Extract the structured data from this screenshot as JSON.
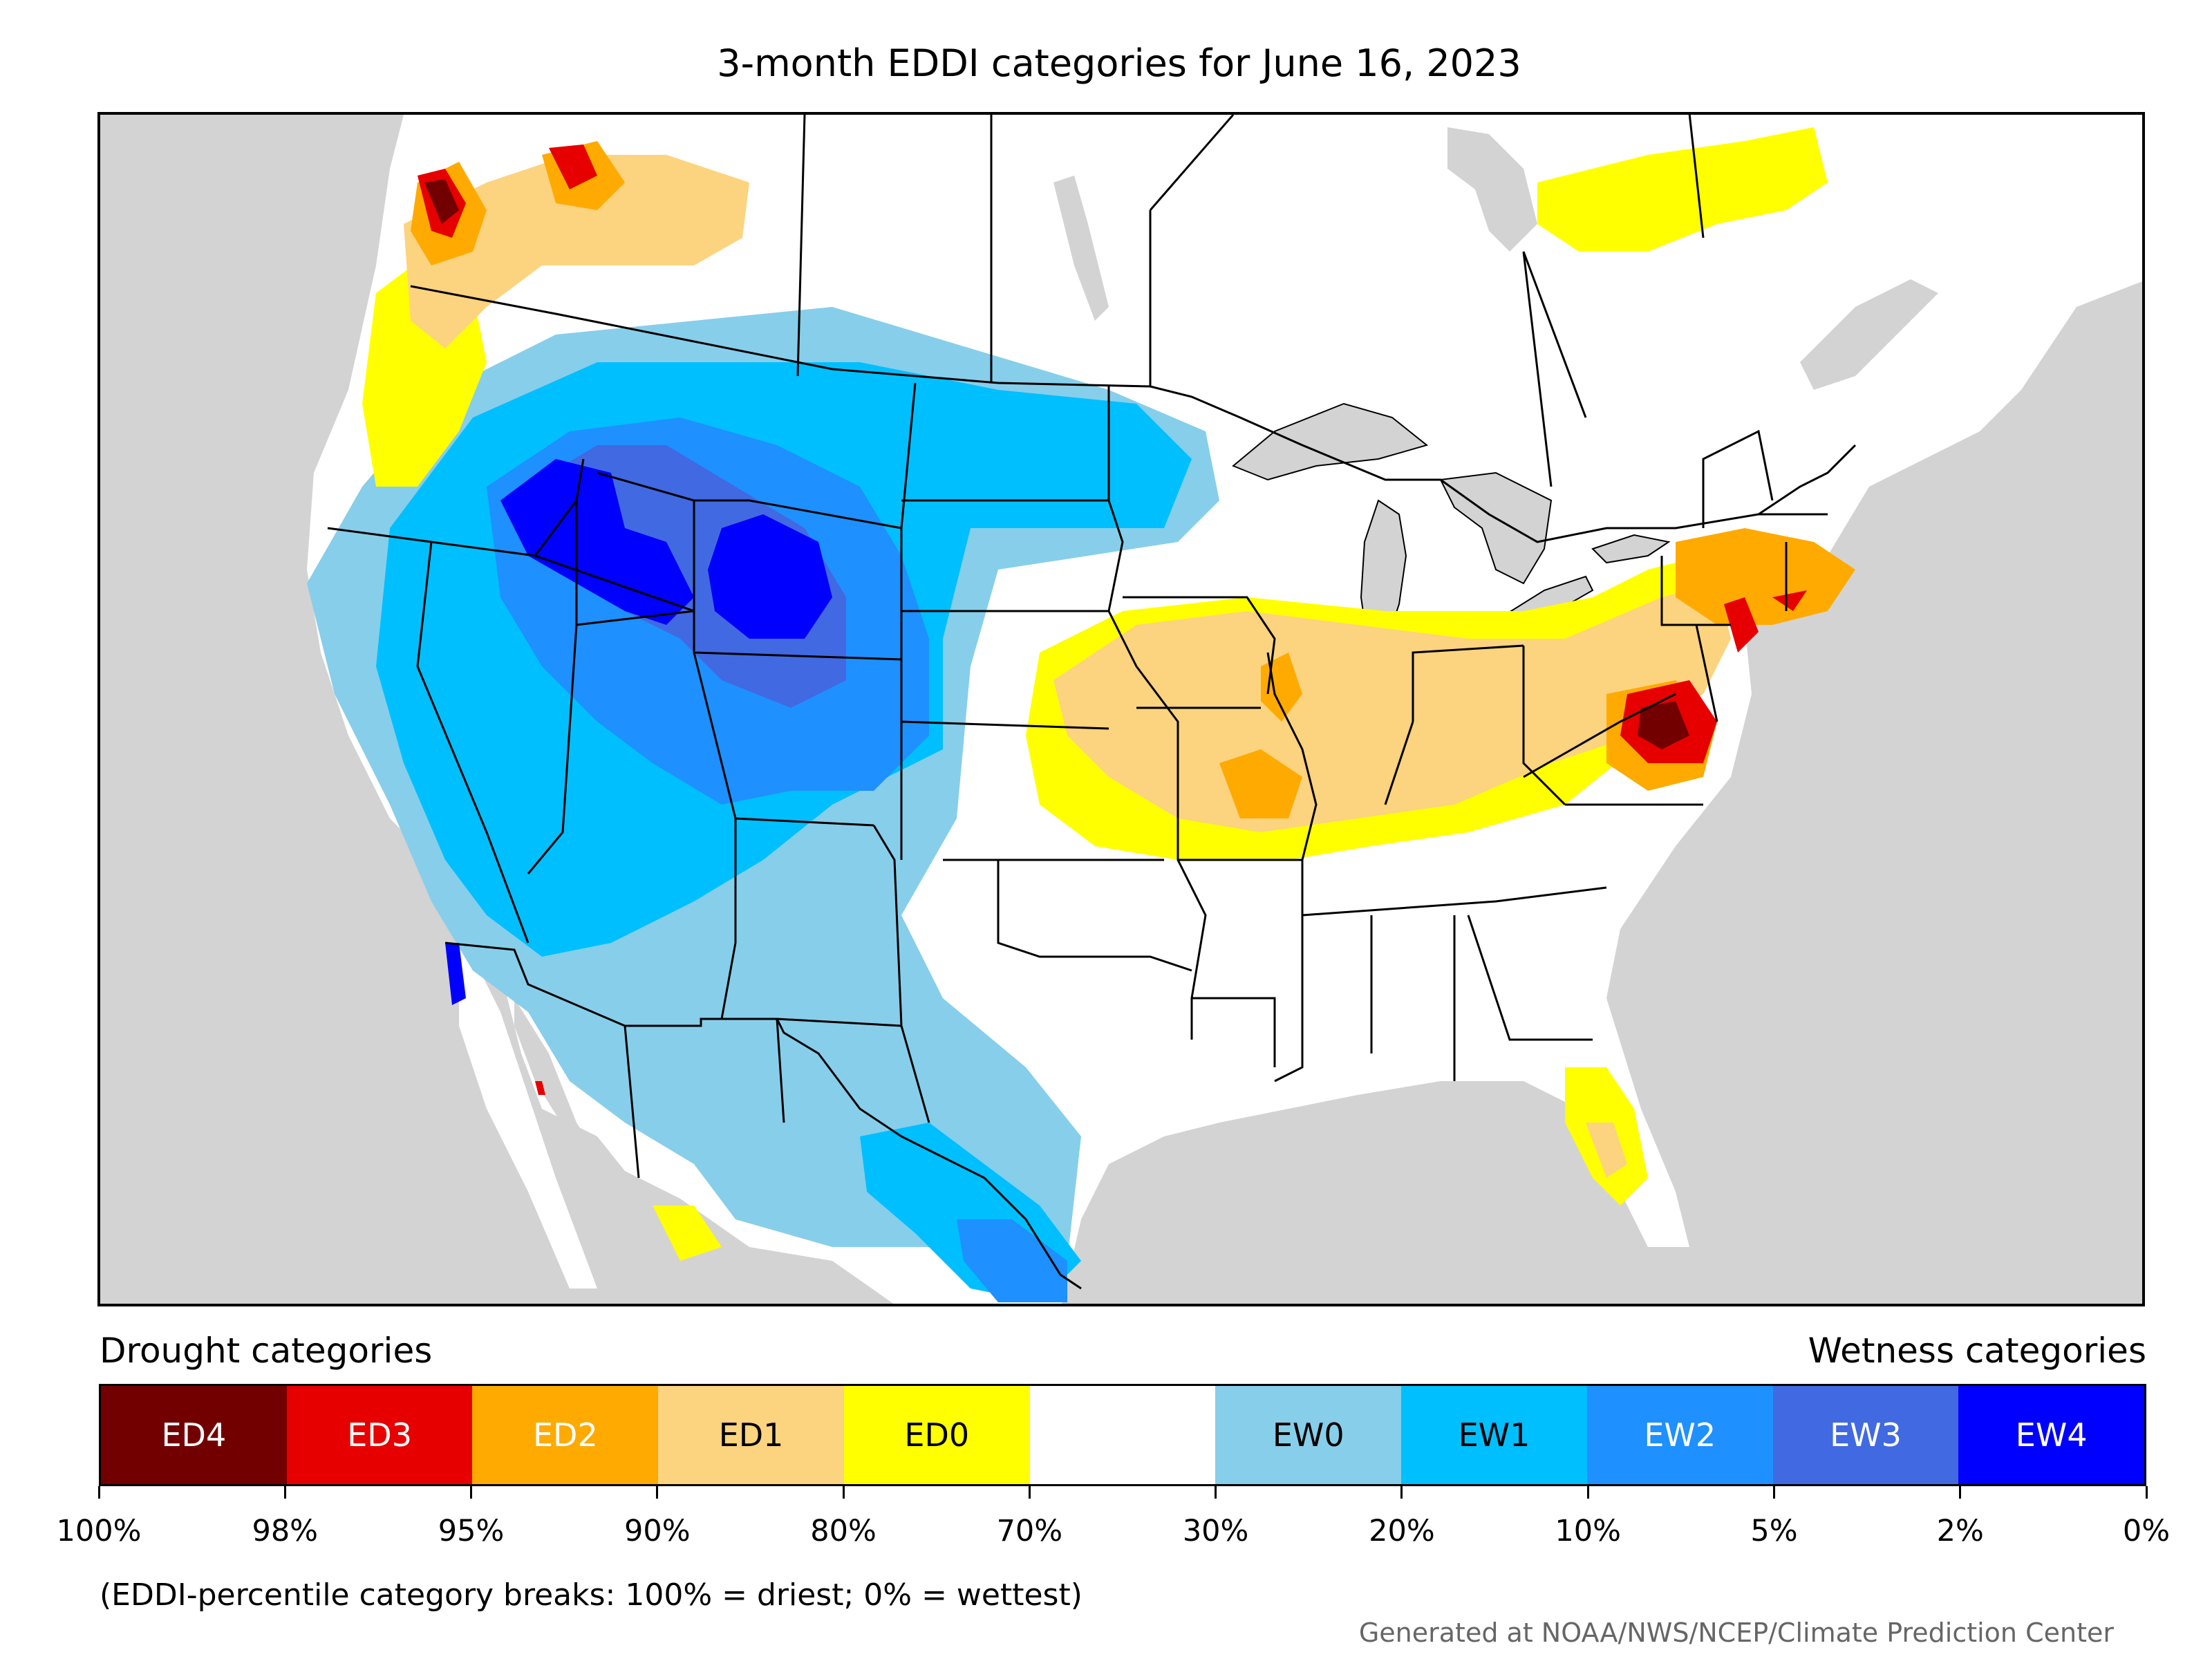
{
  "title": "3-month EDDI categories for June 16, 2023",
  "legend": {
    "drought_label": "Drought categories",
    "wetness_label": "Wetness categories",
    "categories": [
      {
        "label": "ED4",
        "color": "#730000",
        "text_color": "#ffffff"
      },
      {
        "label": "ED3",
        "color": "#e60000",
        "text_color": "#ffffff"
      },
      {
        "label": "ED2",
        "color": "#ffaa00",
        "text_color": "#ffffff"
      },
      {
        "label": "ED1",
        "color": "#fcd37f",
        "text_color": "#000000"
      },
      {
        "label": "ED0",
        "color": "#ffff00",
        "text_color": "#000000"
      },
      {
        "label": "",
        "color": "#ffffff",
        "text_color": "#000000"
      },
      {
        "label": "EW0",
        "color": "#87ceeb",
        "text_color": "#000000"
      },
      {
        "label": "EW1",
        "color": "#00bfff",
        "text_color": "#000000"
      },
      {
        "label": "EW2",
        "color": "#1e90ff",
        "text_color": "#ffffff"
      },
      {
        "label": "EW3",
        "color": "#4169e1",
        "text_color": "#ffffff"
      },
      {
        "label": "EW4",
        "color": "#0000ff",
        "text_color": "#ffffff"
      }
    ],
    "tick_labels": [
      "100%",
      "98%",
      "95%",
      "90%",
      "80%",
      "70%",
      "30%",
      "20%",
      "10%",
      "5%",
      "2%",
      "0%"
    ]
  },
  "note": "(EDDI-percentile category breaks: 100% = driest; 0% = wettest)",
  "credit": "Generated at NOAA/NWS/NCEP/Climate Prediction Center"
}
